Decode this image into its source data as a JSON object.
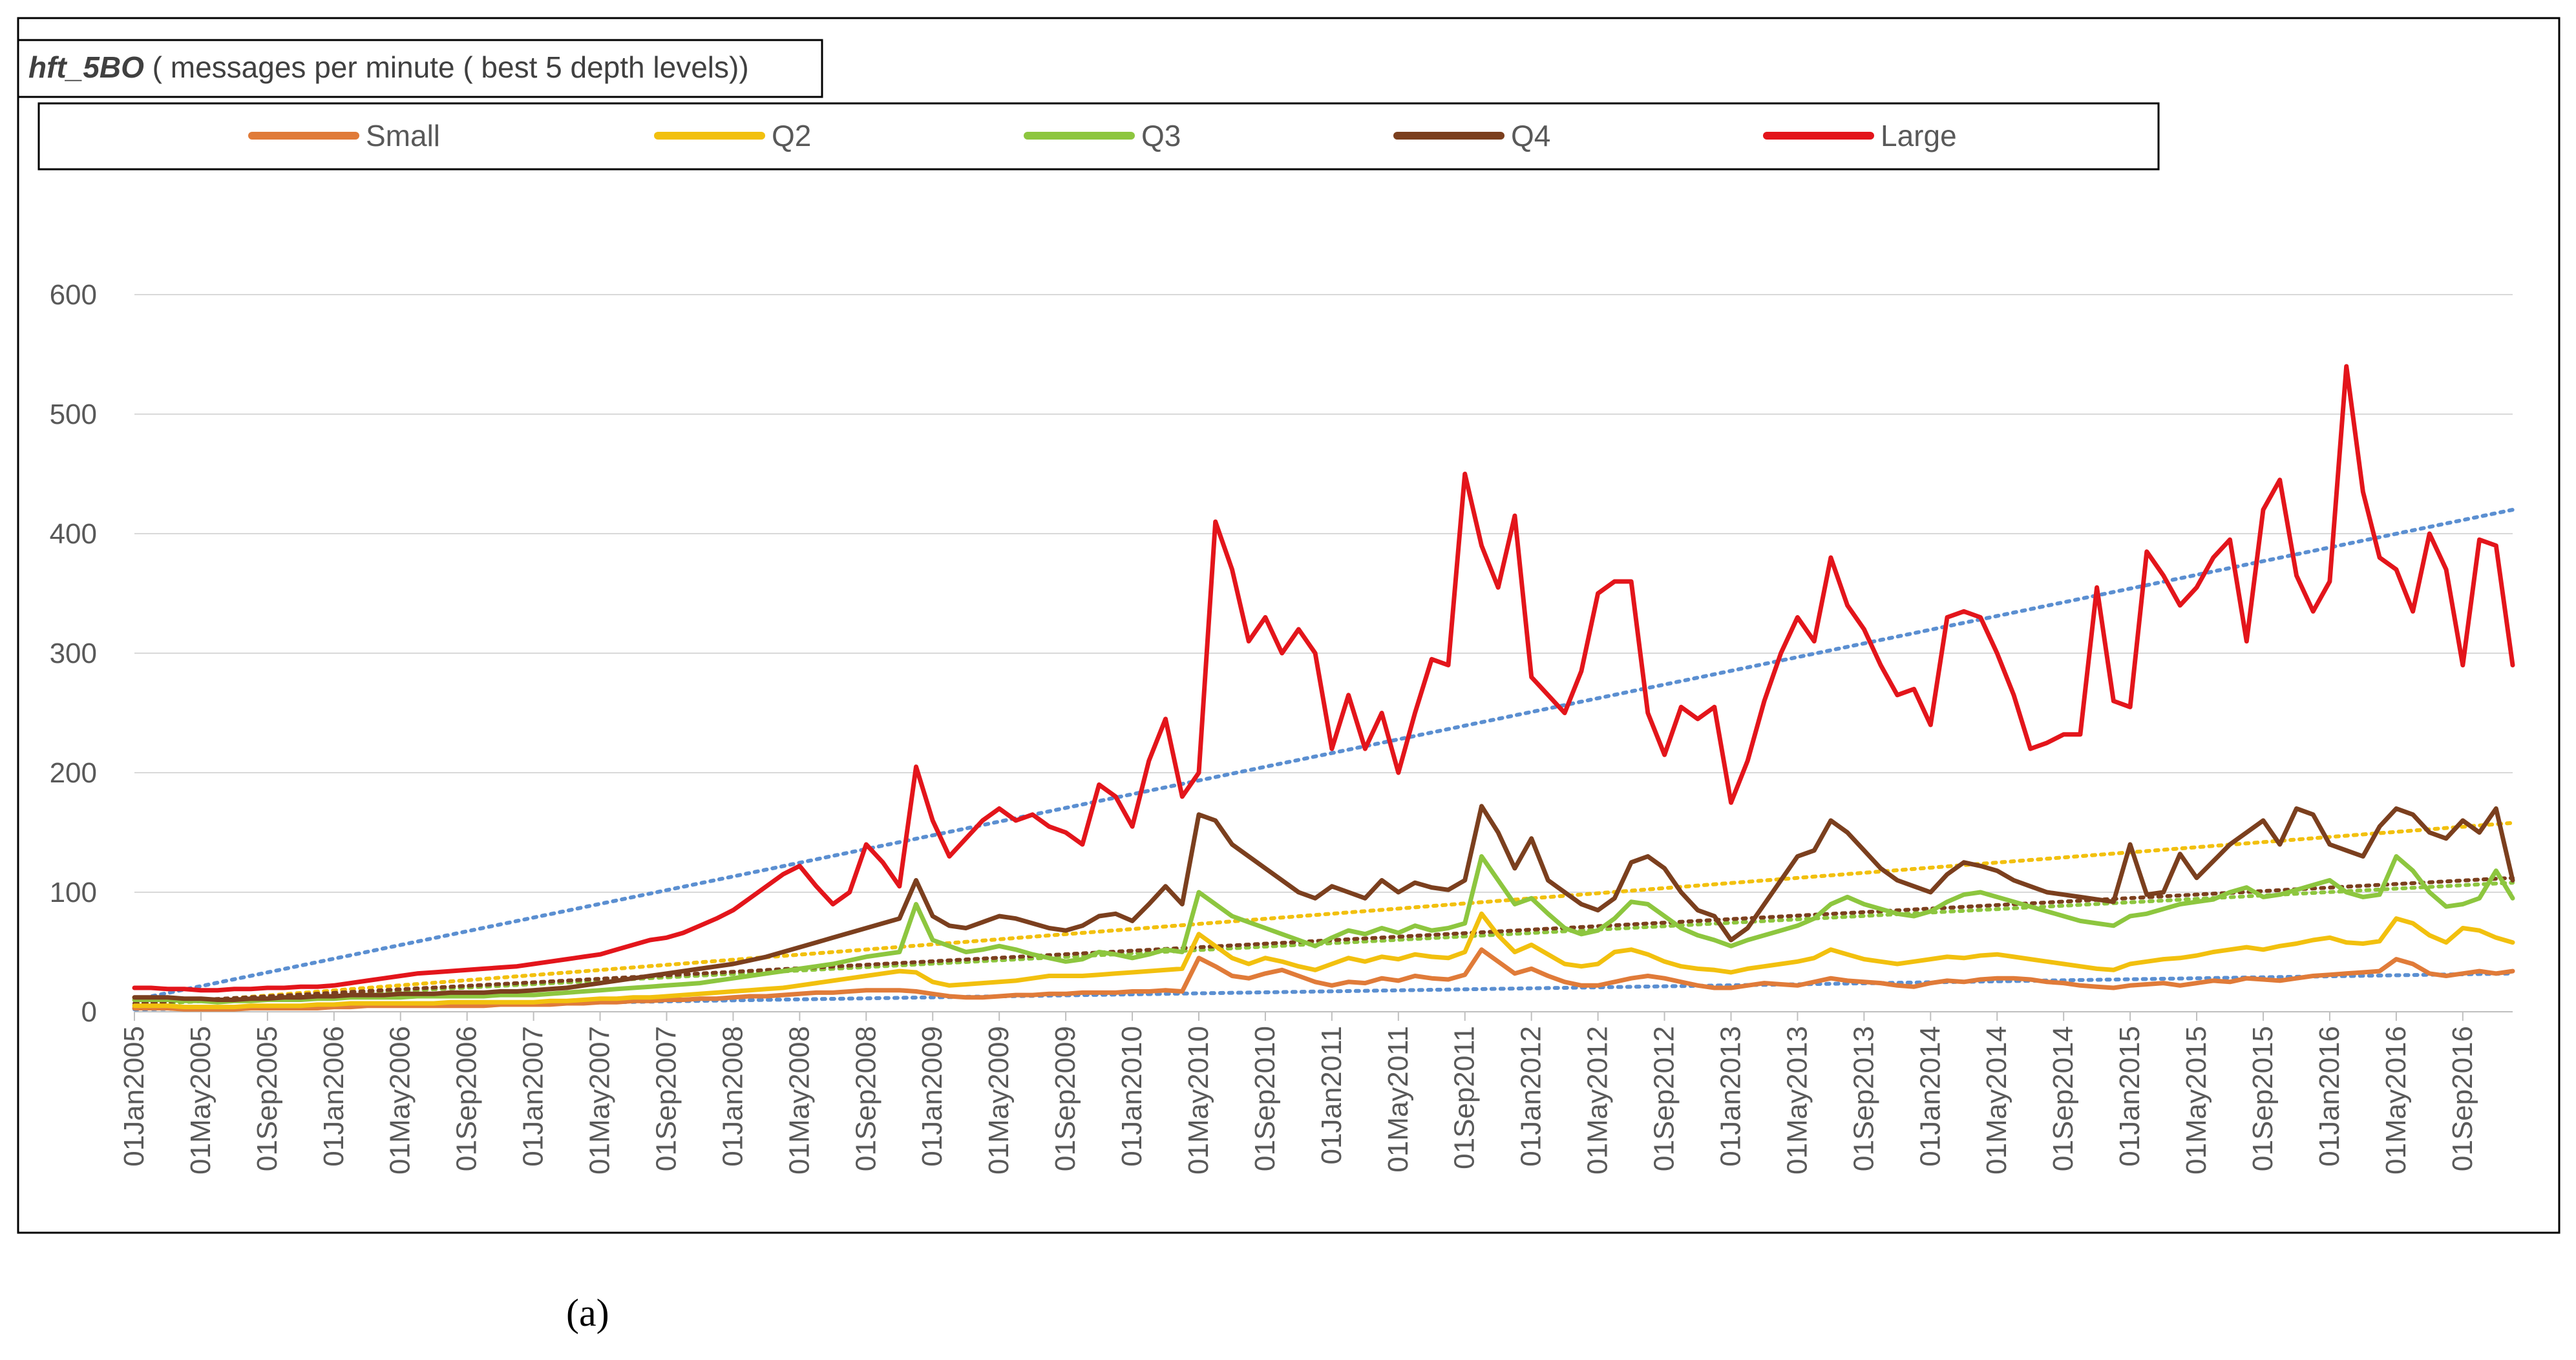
{
  "chart_data": {
    "type": "line",
    "title_bold": "hft_5BO",
    "title_rest": " ( messages per minute ( best 5 depth levels))",
    "panel_label": "(a)",
    "legend_position": "top",
    "grid": "horizontal",
    "ylim": [
      0,
      600
    ],
    "yticks": [
      "0",
      "100",
      "200",
      "300",
      "400",
      "500",
      "600"
    ],
    "x_tick_labels": [
      "01Jan2005",
      "01May2005",
      "01Sep2005",
      "01Jan2006",
      "01May2006",
      "01Sep2006",
      "01Jan2007",
      "01May2007",
      "01Sep2007",
      "01Jan2008",
      "01May2008",
      "01Sep2008",
      "01Jan2009",
      "01May2009",
      "01Sep2009",
      "01Jan2010",
      "01May2010",
      "01Sep2010",
      "01Jan2011",
      "01May2011",
      "01Sep2011",
      "01Jan2012",
      "01May2012",
      "01Sep2012",
      "01Jan2013",
      "01May2013",
      "01Sep2013",
      "01Jan2014",
      "01May2014",
      "01Sep2014",
      "01Jan2015",
      "01May2015",
      "01Sep2015",
      "01Jan2016",
      "01May2016",
      "01Sep2016"
    ],
    "x_tick_month_index": [
      0,
      4,
      8,
      12,
      16,
      20,
      24,
      28,
      32,
      36,
      40,
      44,
      48,
      52,
      56,
      60,
      64,
      68,
      72,
      76,
      80,
      84,
      88,
      92,
      96,
      100,
      104,
      108,
      112,
      116,
      120,
      124,
      128,
      132,
      136,
      140
    ],
    "n_months": 144,
    "series": [
      {
        "name": "Small",
        "color": "#e07b39",
        "values": [
          3,
          3,
          3,
          2,
          2,
          2,
          2,
          3,
          3,
          3,
          3,
          3,
          4,
          4,
          5,
          5,
          5,
          5,
          5,
          5,
          5,
          5,
          6,
          6,
          6,
          6,
          7,
          7,
          8,
          8,
          9,
          9,
          10,
          10,
          11,
          11,
          12,
          13,
          13,
          14,
          15,
          16,
          16,
          17,
          18,
          18,
          18,
          17,
          15,
          13,
          12,
          12,
          13,
          14,
          14,
          15,
          15,
          16,
          16,
          16,
          17,
          17,
          18,
          17,
          45,
          38,
          30,
          28,
          32,
          35,
          30,
          25,
          22,
          25,
          24,
          28,
          26,
          30,
          28,
          27,
          31,
          52,
          42,
          32,
          36,
          30,
          25,
          22,
          22,
          25,
          28,
          30,
          28,
          25,
          22,
          20,
          20,
          22,
          24,
          23,
          22,
          25,
          28,
          26,
          25,
          24,
          22,
          21,
          24,
          26,
          25,
          27,
          28,
          28,
          27,
          25,
          24,
          22,
          21,
          20,
          22,
          23,
          24,
          22,
          24,
          26,
          25,
          28,
          27,
          26,
          28,
          30,
          31,
          32,
          33,
          34,
          44,
          40,
          32,
          30,
          32,
          34,
          32,
          34
        ]
      },
      {
        "name": "Q2",
        "color": "#f2c00e",
        "values": [
          5,
          5,
          5,
          4,
          4,
          4,
          4,
          5,
          5,
          5,
          5,
          6,
          6,
          7,
          7,
          7,
          7,
          7,
          7,
          8,
          8,
          8,
          8,
          8,
          8,
          9,
          9,
          10,
          11,
          11,
          12,
          12,
          13,
          14,
          15,
          16,
          17,
          18,
          19,
          20,
          22,
          24,
          26,
          28,
          30,
          32,
          34,
          33,
          25,
          22,
          23,
          24,
          25,
          26,
          28,
          30,
          30,
          30,
          31,
          32,
          33,
          34,
          35,
          36,
          65,
          55,
          45,
          40,
          45,
          42,
          38,
          35,
          40,
          45,
          42,
          46,
          44,
          48,
          46,
          45,
          50,
          82,
          64,
          50,
          56,
          48,
          40,
          38,
          40,
          50,
          52,
          48,
          42,
          38,
          36,
          35,
          33,
          36,
          38,
          40,
          42,
          45,
          52,
          48,
          44,
          42,
          40,
          42,
          44,
          46,
          45,
          47,
          48,
          46,
          44,
          42,
          40,
          38,
          36,
          35,
          40,
          42,
          44,
          45,
          47,
          50,
          52,
          54,
          52,
          55,
          57,
          60,
          62,
          58,
          57,
          59,
          78,
          74,
          64,
          58,
          70,
          68,
          62,
          58
        ]
      },
      {
        "name": "Q3",
        "color": "#8dc63f",
        "values": [
          10,
          10,
          10,
          9,
          9,
          8,
          9,
          9,
          10,
          10,
          10,
          11,
          11,
          12,
          12,
          12,
          12,
          13,
          13,
          13,
          13,
          13,
          14,
          14,
          14,
          15,
          16,
          17,
          18,
          19,
          20,
          21,
          22,
          23,
          24,
          26,
          28,
          30,
          32,
          34,
          36,
          38,
          40,
          43,
          46,
          48,
          50,
          90,
          60,
          55,
          50,
          52,
          55,
          52,
          48,
          45,
          42,
          44,
          50,
          48,
          45,
          48,
          52,
          50,
          100,
          90,
          80,
          75,
          70,
          65,
          60,
          55,
          62,
          68,
          65,
          70,
          66,
          72,
          68,
          70,
          74,
          130,
          110,
          90,
          95,
          82,
          70,
          65,
          68,
          78,
          92,
          90,
          80,
          70,
          64,
          60,
          55,
          60,
          64,
          68,
          72,
          78,
          90,
          96,
          90,
          86,
          82,
          80,
          84,
          92,
          98,
          100,
          96,
          92,
          88,
          84,
          80,
          76,
          74,
          72,
          80,
          82,
          86,
          90,
          92,
          94,
          100,
          104,
          96,
          98,
          102,
          106,
          110,
          100,
          96,
          98,
          130,
          118,
          100,
          88,
          90,
          95,
          118,
          95
        ]
      },
      {
        "name": "Q4",
        "color": "#7b3f1e",
        "values": [
          12,
          12,
          12,
          11,
          11,
          10,
          10,
          11,
          11,
          12,
          12,
          13,
          13,
          14,
          14,
          14,
          15,
          15,
          15,
          16,
          16,
          16,
          17,
          17,
          18,
          19,
          20,
          22,
          24,
          26,
          28,
          30,
          32,
          34,
          36,
          38,
          40,
          43,
          46,
          50,
          54,
          58,
          62,
          66,
          70,
          74,
          78,
          110,
          80,
          72,
          70,
          75,
          80,
          78,
          74,
          70,
          68,
          72,
          80,
          82,
          76,
          90,
          105,
          90,
          165,
          160,
          140,
          130,
          120,
          110,
          100,
          95,
          105,
          100,
          95,
          110,
          100,
          108,
          104,
          102,
          110,
          172,
          150,
          120,
          145,
          110,
          100,
          90,
          85,
          95,
          125,
          130,
          120,
          100,
          85,
          80,
          60,
          70,
          90,
          110,
          130,
          135,
          160,
          150,
          135,
          120,
          110,
          105,
          100,
          115,
          125,
          122,
          118,
          110,
          105,
          100,
          98,
          96,
          94,
          92,
          140,
          98,
          100,
          132,
          112,
          126,
          140,
          150,
          160,
          140,
          170,
          165,
          140,
          135,
          130,
          155,
          170,
          165,
          150,
          145,
          160,
          150,
          170,
          110
        ]
      },
      {
        "name": "Large",
        "color": "#e3151b",
        "values": [
          20,
          20,
          19,
          19,
          18,
          18,
          19,
          19,
          20,
          20,
          21,
          21,
          22,
          24,
          26,
          28,
          30,
          32,
          33,
          34,
          35,
          36,
          37,
          38,
          40,
          42,
          44,
          46,
          48,
          52,
          56,
          60,
          62,
          66,
          72,
          78,
          85,
          95,
          105,
          115,
          122,
          105,
          90,
          100,
          140,
          125,
          105,
          205,
          160,
          130,
          145,
          160,
          170,
          160,
          165,
          155,
          150,
          140,
          190,
          180,
          155,
          210,
          245,
          180,
          200,
          410,
          370,
          310,
          330,
          300,
          320,
          300,
          220,
          265,
          220,
          250,
          200,
          250,
          295,
          290,
          450,
          390,
          355,
          415,
          280,
          265,
          250,
          285,
          350,
          360,
          360,
          250,
          215,
          255,
          245,
          255,
          175,
          210,
          260,
          300,
          330,
          310,
          380,
          340,
          320,
          290,
          265,
          270,
          240,
          330,
          335,
          330,
          300,
          265,
          220,
          225,
          232,
          232,
          355,
          260,
          255,
          385,
          365,
          340,
          355,
          380,
          395,
          310,
          420,
          445,
          365,
          335,
          360,
          540,
          435,
          380,
          370,
          335,
          400,
          370,
          290,
          395,
          390,
          290
        ]
      }
    ],
    "trendlines": [
      {
        "series": "Small",
        "color": "#5b8fd1",
        "start": 2,
        "end": 32
      },
      {
        "series": "Q2",
        "color": "#f2c00e",
        "start": 5,
        "end": 158
      },
      {
        "series": "Q3",
        "color": "#8dc63f",
        "start": 6,
        "end": 108
      },
      {
        "series": "Q4",
        "color": "#7b3f1e",
        "start": 7,
        "end": 112
      },
      {
        "series": "Large",
        "color": "#5b8fd1",
        "start": 10,
        "end": 420
      }
    ]
  }
}
